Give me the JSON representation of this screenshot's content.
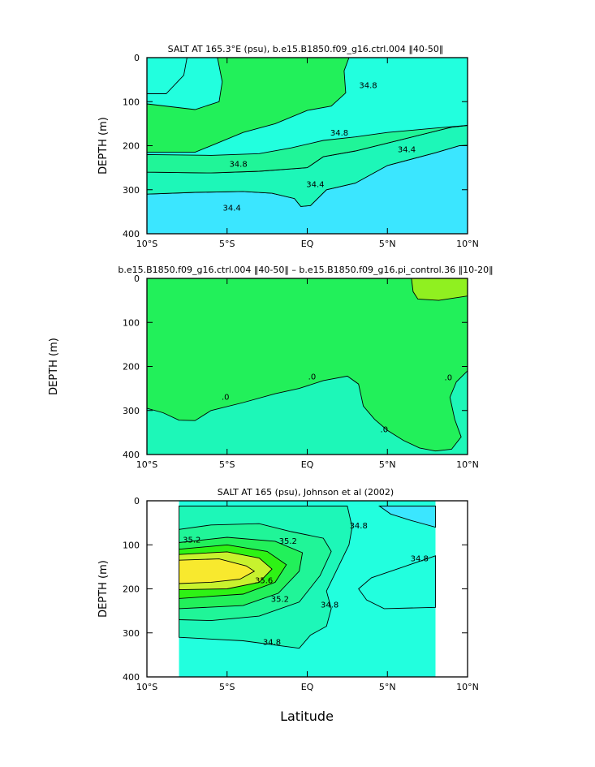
{
  "colors": {
    "cyan_light": "#3BE6FF",
    "cyan": "#22FFDE",
    "aqua_green": "#1DF7B8",
    "green_mid": "#20F598",
    "green": "#22F05A",
    "green_bright": "#2EF215",
    "lime": "#90F020",
    "yellow_green": "#C8F22E",
    "yellow": "#F8E92E",
    "diff_pos": "#22F05A",
    "diff_zero": "#1DF7B8"
  },
  "chart_data": [
    {
      "type": "contour",
      "title": "SALT AT 165.3°E (psu), b.e15.B1850.f09_g16.ctrl.004 ‖40-50‖",
      "xlabel": "",
      "ylabel": "DEPTH (m)",
      "xlim": [
        -10,
        10
      ],
      "ylim": [
        400,
        0
      ],
      "x_ticks": [
        -10,
        -5,
        0,
        5,
        10
      ],
      "x_tick_labels": [
        "10°S",
        "5°S",
        "EQ",
        "5°N",
        "10°N"
      ],
      "y_ticks": [
        0,
        100,
        200,
        300,
        400
      ],
      "y_tick_labels": [
        "0",
        "100",
        "200",
        "300",
        "400"
      ],
      "contour_labels": [
        {
          "text": "34.8",
          "lat": 3.8,
          "depth": 62
        },
        {
          "text": "34.8",
          "lat": 2.0,
          "depth": 170
        },
        {
          "text": "34.8",
          "lat": -4.3,
          "depth": 241
        },
        {
          "text": "34.4",
          "lat": 6.2,
          "depth": 207
        },
        {
          "text": "34.4",
          "lat": 0.5,
          "depth": 287
        },
        {
          "text": "34.4",
          "lat": -4.7,
          "depth": 340
        }
      ],
      "regions": [
        {
          "name": "salinity-band-low-deep",
          "color_key": "cyan_light",
          "boundary": [
            [
              -10,
              400
            ],
            [
              -10,
              310
            ],
            [
              -7,
              306
            ],
            [
              -4,
              304
            ],
            [
              -2.2,
              308
            ],
            [
              -0.8,
              320
            ],
            [
              -0.4,
              338
            ],
            [
              0.2,
              336
            ],
            [
              1.2,
              300
            ],
            [
              3,
              285
            ],
            [
              5,
              245
            ],
            [
              8,
              216
            ],
            [
              9.5,
              200
            ],
            [
              10,
              199
            ],
            [
              10,
              400
            ]
          ]
        },
        {
          "name": "salinity-band-34.4-34.8",
          "color_key": "aqua_green",
          "boundary": [
            [
              -10,
              310
            ],
            [
              -10,
              260
            ],
            [
              -6,
              262
            ],
            [
              -3,
              258
            ],
            [
              0,
              250
            ],
            [
              1,
              225
            ],
            [
              3,
              212
            ],
            [
              6,
              185
            ],
            [
              9,
              158
            ],
            [
              10,
              154
            ],
            [
              10,
              199
            ],
            [
              9.5,
              200
            ],
            [
              8,
              216
            ],
            [
              5,
              245
            ],
            [
              3,
              285
            ],
            [
              1.2,
              300
            ],
            [
              0.2,
              336
            ],
            [
              -0.4,
              338
            ],
            [
              -0.8,
              320
            ],
            [
              -2.2,
              308
            ],
            [
              -4,
              304
            ],
            [
              -7,
              306
            ]
          ]
        },
        {
          "name": "salinity-band-34.8-35.0",
          "color_key": "green_mid",
          "boundary": [
            [
              -10,
              260
            ],
            [
              -10,
              220
            ],
            [
              -6,
              222
            ],
            [
              -3,
              218
            ],
            [
              -1,
              205
            ],
            [
              1,
              188
            ],
            [
              3,
              180
            ],
            [
              5,
              170
            ],
            [
              8,
              160
            ],
            [
              10,
              154
            ],
            [
              9,
              158
            ],
            [
              6,
              185
            ],
            [
              3,
              212
            ],
            [
              1,
              225
            ],
            [
              0,
              250
            ],
            [
              -3,
              258
            ],
            [
              -6,
              262
            ]
          ]
        },
        {
          "name": "salinity-band-high-core",
          "color_key": "green",
          "boundary": [
            [
              -10,
              105
            ],
            [
              -7,
              118
            ],
            [
              -5.5,
              100
            ],
            [
              -5.3,
              55
            ],
            [
              -5.6,
              0
            ],
            [
              2.6,
              0
            ],
            [
              2.3,
              30
            ],
            [
              2.4,
              80
            ],
            [
              1.5,
              110
            ],
            [
              0,
              120
            ],
            [
              -2,
              150
            ],
            [
              -4,
              170
            ],
            [
              -7,
              215
            ],
            [
              -10,
              215
            ]
          ]
        },
        {
          "name": "salinity-band-surface-west",
          "color_key": "cyan",
          "boundary": [
            [
              -10,
              0
            ],
            [
              -7.5,
              0
            ],
            [
              -7.7,
              40
            ],
            [
              -8.8,
              82
            ],
            [
              -10,
              82
            ]
          ]
        }
      ]
    },
    {
      "type": "contour",
      "title": "b.e15.B1850.f09_g16.ctrl.004 ‖40-50‖ – b.e15.B1850.f09_g16.pi_control.36 ‖10-20‖",
      "xlabel": "",
      "ylabel": "DEPTH (m)",
      "xlim": [
        -10,
        10
      ],
      "ylim": [
        400,
        0
      ],
      "x_ticks": [
        -10,
        -5,
        0,
        5,
        10
      ],
      "x_tick_labels": [
        "10°S",
        "5°S",
        "EQ",
        "5°N",
        "10°N"
      ],
      "y_ticks": [
        0,
        100,
        200,
        300,
        400
      ],
      "y_tick_labels": [
        "0",
        "100",
        "200",
        "300",
        "400"
      ],
      "contour_labels": [
        {
          "text": ".0",
          "lat": -5.1,
          "depth": 268
        },
        {
          "text": ".0",
          "lat": 0.3,
          "depth": 222
        },
        {
          "text": ".0",
          "lat": 4.8,
          "depth": 342
        },
        {
          "text": ".0",
          "lat": 8.8,
          "depth": 224
        }
      ],
      "regions": [
        {
          "name": "difference-negative-region",
          "color_key": "diff_zero",
          "boundary": [
            [
              -10,
              295
            ],
            [
              -9,
              305
            ],
            [
              -8,
              322
            ],
            [
              -7,
              323
            ],
            [
              -6,
              300
            ],
            [
              -4,
              282
            ],
            [
              -2,
              262
            ],
            [
              -0.5,
              250
            ],
            [
              1,
              232
            ],
            [
              2.5,
              222
            ],
            [
              3.2,
              240
            ],
            [
              3.5,
              290
            ],
            [
              4.2,
              320
            ],
            [
              5,
              345
            ],
            [
              6,
              368
            ],
            [
              7,
              385
            ],
            [
              8,
              392
            ],
            [
              9,
              388
            ],
            [
              9.6,
              360
            ],
            [
              9.2,
              320
            ],
            [
              8.9,
              270
            ],
            [
              9.3,
              235
            ],
            [
              10,
              210
            ],
            [
              10,
              400
            ],
            [
              -10,
              400
            ]
          ]
        },
        {
          "name": "difference-positive-patch",
          "color_key": "lime",
          "boundary": [
            [
              6.5,
              0
            ],
            [
              10,
              0
            ],
            [
              10,
              40
            ],
            [
              8.2,
              50
            ],
            [
              6.9,
              47
            ],
            [
              6.6,
              30
            ]
          ]
        }
      ]
    },
    {
      "type": "contour",
      "title": "SALT AT 165 (psu), Johnson et al (2002)",
      "xlabel": "Latitude",
      "ylabel": "DEPTH (m)",
      "xlim": [
        -10,
        10
      ],
      "ylim": [
        400,
        0
      ],
      "data_extent_lat": [
        -8,
        8
      ],
      "x_ticks": [
        -10,
        -5,
        0,
        5,
        10
      ],
      "x_tick_labels": [
        "10°S",
        "5°S",
        "EQ",
        "5°N",
        "10°N"
      ],
      "y_ticks": [
        0,
        100,
        200,
        300,
        400
      ],
      "y_tick_labels": [
        "0",
        "100",
        "200",
        "300",
        "400"
      ],
      "contour_labels": [
        {
          "text": "35.2",
          "lat": -7.2,
          "depth": 88
        },
        {
          "text": "35.2",
          "lat": -1.2,
          "depth": 90
        },
        {
          "text": "35.6",
          "lat": -2.7,
          "depth": 180
        },
        {
          "text": "35.2",
          "lat": -1.7,
          "depth": 222
        },
        {
          "text": "34.8",
          "lat": 3.2,
          "depth": 55
        },
        {
          "text": "34.8",
          "lat": 7.0,
          "depth": 130
        },
        {
          "text": "34.8",
          "lat": 1.4,
          "depth": 235
        },
        {
          "text": "34.8",
          "lat": -2.2,
          "depth": 320
        }
      ],
      "regions": [
        {
          "name": "salinity-band-34.8-35.0",
          "color_key": "aqua_green",
          "boundary": [
            [
              -8,
              12
            ],
            [
              2.5,
              12
            ],
            [
              2.8,
              60
            ],
            [
              2.6,
              100
            ],
            [
              1.8,
              160
            ],
            [
              1.2,
              205
            ],
            [
              1.5,
              245
            ],
            [
              1.2,
              285
            ],
            [
              0.2,
              305
            ],
            [
              -0.5,
              335
            ],
            [
              -4,
              318
            ],
            [
              -8,
              310
            ]
          ]
        },
        {
          "name": "salinity-band-35.0-35.2",
          "color_key": "green_mid",
          "boundary": [
            [
              -8,
              65
            ],
            [
              -6,
              55
            ],
            [
              -3,
              52
            ],
            [
              -1,
              70
            ],
            [
              1,
              85
            ],
            [
              1.5,
              115
            ],
            [
              0.8,
              170
            ],
            [
              -0.5,
              230
            ],
            [
              -3,
              262
            ],
            [
              -6,
              272
            ],
            [
              -8,
              270
            ]
          ]
        },
        {
          "name": "salinity-band-35.2-35.4",
          "color_key": "green",
          "boundary": [
            [
              -8,
              95
            ],
            [
              -5,
              83
            ],
            [
              -2,
              92
            ],
            [
              -0.3,
              118
            ],
            [
              -0.5,
              160
            ],
            [
              -1.8,
              210
            ],
            [
              -4,
              238
            ],
            [
              -8,
              245
            ]
          ]
        },
        {
          "name": "salinity-band-35.4-35.5",
          "color_key": "green_bright",
          "boundary": [
            [
              -8,
              110
            ],
            [
              -5,
              100
            ],
            [
              -2.5,
              115
            ],
            [
              -1.3,
              145
            ],
            [
              -2,
              185
            ],
            [
              -4,
              212
            ],
            [
              -8,
              222
            ]
          ]
        },
        {
          "name": "salinity-band-35.5-35.6",
          "color_key": "yellow_green",
          "boundary": [
            [
              -8,
              122
            ],
            [
              -5,
              116
            ],
            [
              -3,
              130
            ],
            [
              -2.2,
              155
            ],
            [
              -3,
              185
            ],
            [
              -5,
              200
            ],
            [
              -8,
              202
            ]
          ]
        },
        {
          "name": "salinity-band-max-core",
          "color_key": "yellow",
          "boundary": [
            [
              -8,
              135
            ],
            [
              -5.5,
              132
            ],
            [
              -3.8,
              148
            ],
            [
              -3.3,
              160
            ],
            [
              -4.2,
              178
            ],
            [
              -6,
              185
            ],
            [
              -8,
              188
            ]
          ]
        },
        {
          "name": "salinity-band-fresh-northeast",
          "color_key": "cyan_light",
          "boundary": [
            [
              4.5,
              12
            ],
            [
              8,
              12
            ],
            [
              8,
              60
            ],
            [
              6.5,
              45
            ],
            [
              5.2,
              30
            ]
          ]
        },
        {
          "name": "salinity-band-fresh-deep-north",
          "color_key": "cyan",
          "boundary": [
            [
              8,
              125
            ],
            [
              6,
              150
            ],
            [
              4,
              175
            ],
            [
              3.2,
              200
            ],
            [
              3.7,
              225
            ],
            [
              4.8,
              245
            ],
            [
              8,
              242
            ]
          ]
        }
      ]
    }
  ]
}
